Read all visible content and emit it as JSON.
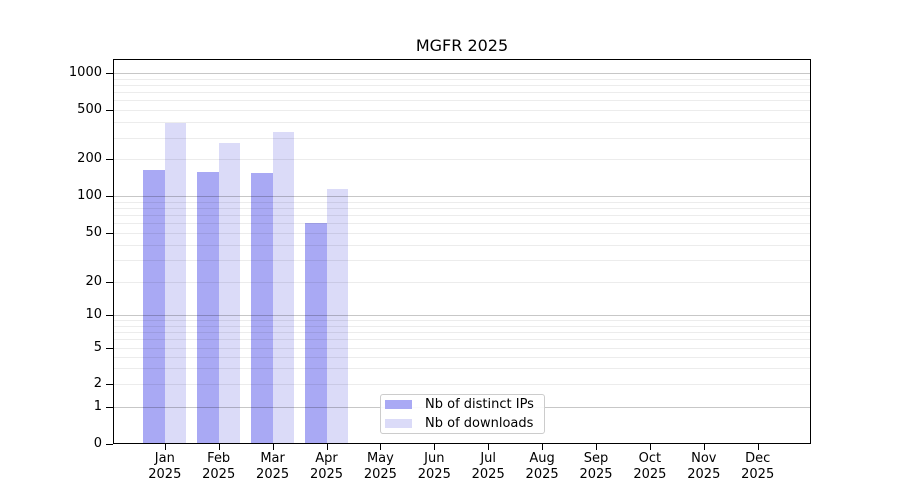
{
  "chart_data": {
    "type": "bar",
    "title": "MGFR 2025",
    "months": [
      "Jan",
      "Feb",
      "Mar",
      "Apr",
      "May",
      "Jun",
      "Jul",
      "Aug",
      "Sep",
      "Oct",
      "Nov",
      "Dec"
    ],
    "year": "2025",
    "series": [
      {
        "name": "Nb of distinct IPs",
        "color": "#a9a9f4",
        "values": [
          163,
          157,
          154,
          60,
          null,
          null,
          null,
          null,
          null,
          null,
          null,
          null
        ]
      },
      {
        "name": "Nb of downloads",
        "color": "#dbdbf8",
        "values": [
          390,
          272,
          330,
          115,
          null,
          null,
          null,
          null,
          null,
          null,
          null,
          null
        ]
      }
    ],
    "yscale": "symlog",
    "yticks": [
      0,
      1,
      2,
      5,
      10,
      20,
      50,
      100,
      200,
      500,
      1000
    ],
    "ylim": [
      0,
      1300
    ],
    "grid": true,
    "grid_major_color": "#c6c6c6",
    "grid_minor_color": "#e9e9e9",
    "legend_position": "lower center"
  }
}
